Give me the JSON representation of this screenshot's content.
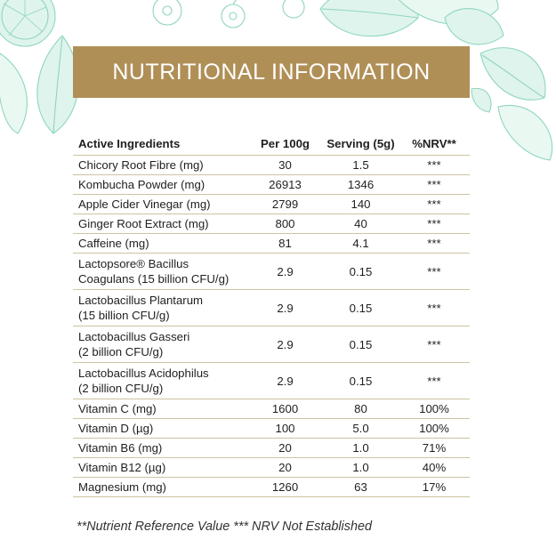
{
  "banner": {
    "title": "NUTRITIONAL INFORMATION"
  },
  "table": {
    "headers": [
      "Active Ingredients",
      "Per 100g",
      "Serving (5g)",
      "%NRV**"
    ],
    "rows": [
      {
        "name": [
          "Chicory Root Fibre (mg)"
        ],
        "per100g": "30",
        "serving": "1.5",
        "nrv": "***"
      },
      {
        "name": [
          "Kombucha Powder (mg)"
        ],
        "per100g": "26913",
        "serving": "1346",
        "nrv": "***"
      },
      {
        "name": [
          "Apple Cider Vinegar (mg)"
        ],
        "per100g": "2799",
        "serving": "140",
        "nrv": "***"
      },
      {
        "name": [
          "Ginger Root Extract (mg)"
        ],
        "per100g": "800",
        "serving": "40",
        "nrv": "***"
      },
      {
        "name": [
          "Caffeine (mg)"
        ],
        "per100g": "81",
        "serving": "4.1",
        "nrv": "***"
      },
      {
        "name": [
          "Lactopsore® Bacillus",
          "Coagulans (15 billion CFU/g)"
        ],
        "per100g": "2.9",
        "serving": "0.15",
        "nrv": "***"
      },
      {
        "name": [
          "Lactobacillus Plantarum",
          "(15 billion CFU/g)"
        ],
        "per100g": "2.9",
        "serving": "0.15",
        "nrv": "***"
      },
      {
        "name": [
          "Lactobacillus Gasseri",
          "(2 billion CFU/g)"
        ],
        "per100g": "2.9",
        "serving": "0.15",
        "nrv": "***"
      },
      {
        "name": [
          "Lactobacillus Acidophilus",
          "(2 billion CFU/g)"
        ],
        "per100g": "2.9",
        "serving": "0.15",
        "nrv": "***"
      },
      {
        "name": [
          "Vitamin C (mg)"
        ],
        "per100g": "1600",
        "serving": "80",
        "nrv": "100%"
      },
      {
        "name": [
          "Vitamin D (µg)"
        ],
        "per100g": "100",
        "serving": "5.0",
        "nrv": "100%"
      },
      {
        "name": [
          "Vitamin B6 (mg)"
        ],
        "per100g": "20",
        "serving": "1.0",
        "nrv": "71%"
      },
      {
        "name": [
          "Vitamin B12 (µg)"
        ],
        "per100g": "20",
        "serving": "1.0",
        "nrv": "40%"
      },
      {
        "name": [
          "Magnesium (mg)"
        ],
        "per100g": "1260",
        "serving": "63",
        "nrv": "17%"
      }
    ]
  },
  "footnote": "**Nutrient Reference Value   *** NRV Not Established",
  "colors": {
    "banner": "#b08f57",
    "illustration": "#8fd6be"
  },
  "background_art": "botanical-illustration"
}
